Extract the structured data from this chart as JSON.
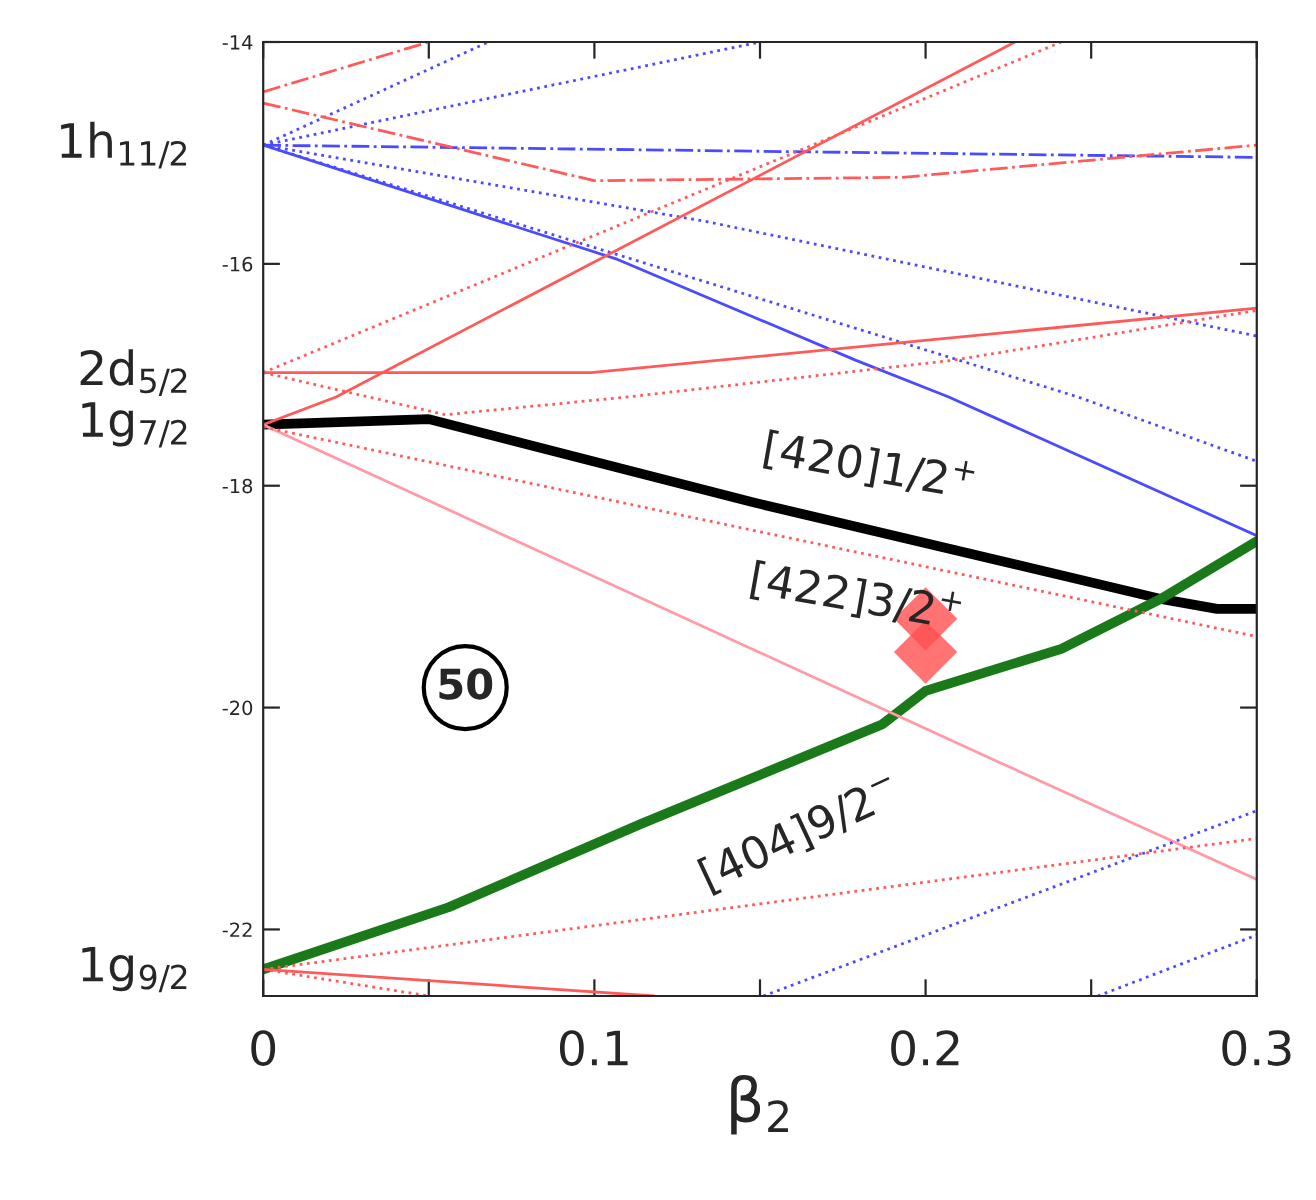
{
  "chart_data": {
    "type": "line",
    "xlabel": "β$_{2}$",
    "xlim": [
      0,
      0.3
    ],
    "ylim": [
      -22.6,
      -14
    ],
    "xticks": [
      0,
      {
        "value": 0.05,
        "label": null
      },
      0.1,
      {
        "value": 0.15,
        "label": null
      },
      0.2,
      {
        "value": 0.25,
        "label": null
      },
      0.3
    ],
    "yticks": [
      -22,
      -20,
      -18,
      -16,
      -14
    ],
    "grid": false,
    "legend": false,
    "series": [
      {
        "color": "#000000",
        "line_style": "solid",
        "x": [
          0,
          0.05,
          0.148,
          0.271,
          0.288,
          0.3
        ],
        "values": [
          -17.45,
          -17.4,
          -18.15,
          -19.02,
          -19.11,
          -19.11
        ]
      },
      {
        "color": "#1a7a1a",
        "line_style": "solid",
        "x": [
          0,
          0.056,
          0.114,
          0.187,
          0.2,
          0.241,
          0.271,
          0.3
        ],
        "values": [
          -22.36,
          -21.8,
          -21.05,
          -20.15,
          -19.85,
          -19.47,
          -19.02,
          -18.5
        ]
      },
      {
        "color": "#4a4aff",
        "line_style": "dashed",
        "x": [
          0,
          0.3
        ],
        "values": [
          -14.93,
          -15.04
        ]
      },
      {
        "color": "#4a4aff",
        "line_style": "solid",
        "x": [
          0,
          0.107,
          0.179,
          0.207,
          0.3
        ],
        "values": [
          -14.93,
          -15.96,
          -16.87,
          -17.2,
          -18.45
        ]
      },
      {
        "color": "#4a4aff",
        "line_style": "dotted",
        "x": [
          0,
          0.134,
          0.3
        ],
        "values": [
          -14.93,
          -15.62,
          -16.65
        ]
      },
      {
        "color": "#4a4aff",
        "line_style": "dotted",
        "x": [
          0,
          0.246,
          0.3
        ],
        "values": [
          -14.93,
          -17.2,
          -17.78
        ]
      },
      {
        "color": "#4a4aff",
        "line_style": "dotted",
        "x": [
          0,
          0.15
        ],
        "values": [
          -14.93,
          -14.0
        ]
      },
      {
        "color": "#4a4aff",
        "line_style": "dotted",
        "x": [
          0,
          0.068
        ],
        "values": [
          -14.93,
          -14.0
        ]
      },
      {
        "color": "#ff5a5a",
        "line_style": "dashed",
        "x": [
          0,
          0.05
        ],
        "values": [
          -14.45,
          -14.0
        ]
      },
      {
        "color": "#ff5a5a",
        "line_style": "dashed",
        "x": [
          0,
          0.1,
          0.193,
          0.3
        ],
        "values": [
          -14.55,
          -15.25,
          -15.22,
          -14.93
        ]
      },
      {
        "color": "#ff5a5a",
        "line_style": "solid",
        "x": [
          0,
          0.022,
          0.227
        ],
        "values": [
          -17.45,
          -17.2,
          -14.0
        ]
      },
      {
        "color": "#ff5a5a",
        "line_style": "dotted",
        "x": [
          0,
          0.241
        ],
        "values": [
          -16.98,
          -14.0
        ]
      },
      {
        "color": "#ff5a5a",
        "line_style": "solid",
        "x": [
          0,
          0.099,
          0.3
        ],
        "values": [
          -16.98,
          -16.98,
          -16.4
        ]
      },
      {
        "color": "#ff5a5a",
        "line_style": "dotted",
        "x": [
          0,
          0.055,
          0.11,
          0.208,
          0.3
        ],
        "values": [
          -16.98,
          -17.36,
          -17.2,
          -16.87,
          -16.42
        ]
      },
      {
        "color": "#ff9aa8",
        "line_style": "solid",
        "x": [
          0,
          0.222,
          0.3
        ],
        "values": [
          -17.45,
          -20.49,
          -21.55
        ]
      },
      {
        "color": "#ff5a5a",
        "line_style": "dotted",
        "x": [
          0,
          0.3
        ],
        "values": [
          -17.47,
          -19.36
        ]
      },
      {
        "color": "#ff5a5a",
        "line_style": "dotted",
        "x": [
          0,
          0.3
        ],
        "values": [
          -22.36,
          -21.18
        ]
      },
      {
        "color": "#ff5a5a",
        "line_style": "solid",
        "x": [
          0,
          0.118
        ],
        "values": [
          -22.36,
          -22.6
        ]
      },
      {
        "color": "#ff5a5a",
        "line_style": "dotted",
        "x": [
          0,
          0.05
        ],
        "values": [
          -22.36,
          -22.6
        ]
      },
      {
        "color": "#4a4aff",
        "line_style": "dotted",
        "x": [
          0.151,
          0.3
        ],
        "values": [
          -22.6,
          -20.93
        ]
      },
      {
        "color": "#4a4aff",
        "line_style": "dotted",
        "x": [
          0.252,
          0.3
        ],
        "values": [
          -22.6,
          -22.05
        ]
      },
      {
        "type": "scatter",
        "marker": "diamond",
        "color": "#ff5050",
        "x": [
          0.2,
          0.2
        ],
        "values": [
          -19.2,
          -19.5
        ]
      }
    ],
    "annotations": [
      {
        "text": "1h$_{11/2}$",
        "x": 0,
        "y": -14.93
      },
      {
        "text": "2d$_{5/2}$",
        "x": 0,
        "y": -16.98
      },
      {
        "text": "1g$_{7/2}$",
        "x": 0,
        "y": -17.45
      },
      {
        "text": "1g$_{9/2}$",
        "x": 0,
        "y": -22.36
      },
      {
        "text": "[420]1/2$^{+}$",
        "x": 0.183,
        "y": -18.4
      },
      {
        "text": "[422]3/2$^{+}$",
        "x": 0.179,
        "y": -18.6
      },
      {
        "text": "[404]9/2$^{−}$",
        "x": 0.159,
        "y": -20.5
      },
      {
        "text": "50",
        "x": 0.061,
        "y": -19.82
      }
    ]
  }
}
